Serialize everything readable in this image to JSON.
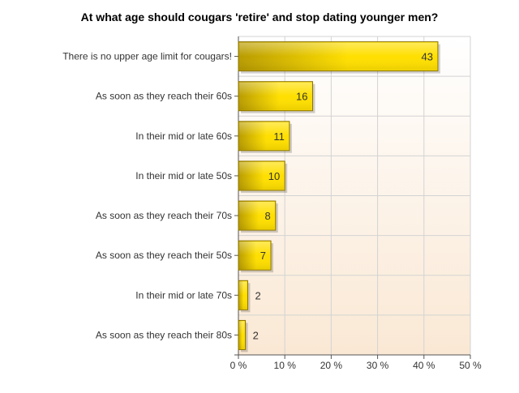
{
  "chart_data": {
    "type": "bar",
    "orientation": "horizontal",
    "title": "At what age should cougars 'retire' and stop dating younger men?",
    "xlabel": "",
    "ylabel": "",
    "categories": [
      "There is no upper age limit for cougars!",
      "As soon as they reach their 60s",
      "In their mid or late 60s",
      "In their mid or late 50s",
      "As soon as they reach their 70s",
      "As soon as they reach their 50s",
      "In their mid or late 70s",
      "As soon as they reach their 80s"
    ],
    "series": [
      {
        "percent": [
          43.0,
          16.0,
          11.0,
          10.0,
          8.0,
          7.0,
          2.0,
          1.5
        ],
        "labels": [
          "43",
          "16",
          "11",
          "10",
          "8",
          "7",
          "2",
          "2"
        ]
      }
    ],
    "xlim": [
      0,
      50
    ],
    "xticks": [
      0,
      10,
      20,
      30,
      40,
      50
    ],
    "xtick_labels": [
      "0 %",
      "10 %",
      "20 %",
      "30 %",
      "40 %",
      "50 %"
    ],
    "grid": true,
    "legend": "none",
    "colors": {
      "bar_light": "#ffdf00",
      "bar_dark": "#b89b00",
      "bar_border": "#8a7400",
      "background_top": "#ffffff",
      "background_bottom": "#fae8d4",
      "grid": "#d3d3d3",
      "text": "#333333"
    }
  }
}
